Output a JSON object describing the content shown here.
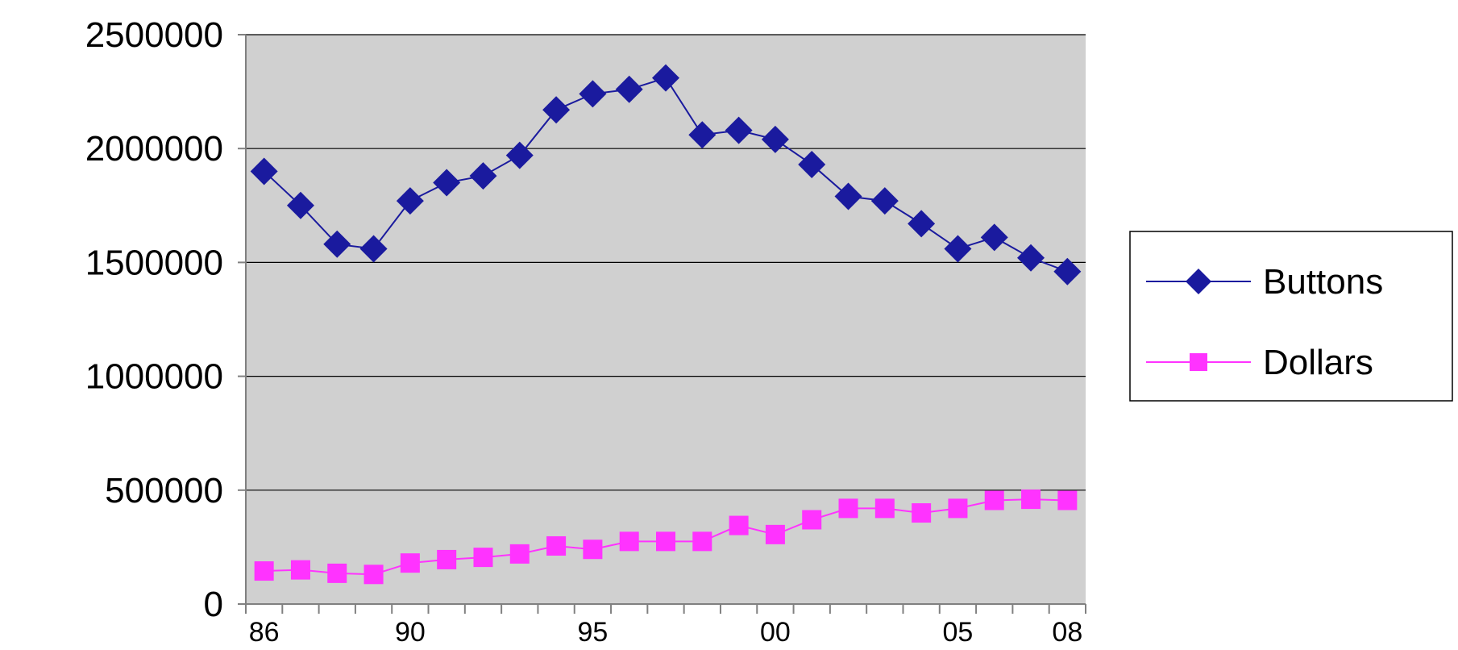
{
  "chart_data": {
    "type": "line",
    "title": "",
    "xlabel": "",
    "ylabel": "",
    "x": [
      1986,
      1987,
      1988,
      1989,
      1990,
      1991,
      1992,
      1993,
      1994,
      1995,
      1996,
      1997,
      1998,
      1999,
      2000,
      2001,
      2002,
      2003,
      2004,
      2005,
      2006,
      2007,
      2008
    ],
    "x_tick_labels": [
      {
        "x": 1986,
        "label": "86"
      },
      {
        "x": 1990,
        "label": "90"
      },
      {
        "x": 1995,
        "label": "95"
      },
      {
        "x": 2000,
        "label": "00"
      },
      {
        "x": 2005,
        "label": "05"
      },
      {
        "x": 2008,
        "label": "08"
      }
    ],
    "y_ticks": [
      "0",
      "500000",
      "1000000",
      "1500000",
      "2000000",
      "2500000"
    ],
    "ylim": [
      0,
      2500000
    ],
    "xlim": [
      1985.5,
      2008.5
    ],
    "grid": true,
    "legend": "right",
    "plot_background": "#d0d0d0",
    "series": [
      {
        "name": "Buttons",
        "color": "#1a1a9e",
        "marker": "diamond",
        "values": [
          1900000,
          1750000,
          1580000,
          1560000,
          1770000,
          1850000,
          1880000,
          1970000,
          2170000,
          2240000,
          2260000,
          2310000,
          2060000,
          2080000,
          2040000,
          1930000,
          1790000,
          1770000,
          1670000,
          1560000,
          1610000,
          1520000,
          1460000
        ]
      },
      {
        "name": "Dollars",
        "color": "#ff33ff",
        "marker": "square",
        "values": [
          145000,
          150000,
          135000,
          130000,
          180000,
          195000,
          205000,
          220000,
          255000,
          240000,
          275000,
          275000,
          275000,
          345000,
          305000,
          370000,
          420000,
          420000,
          400000,
          420000,
          455000,
          460000,
          455000
        ]
      }
    ]
  }
}
